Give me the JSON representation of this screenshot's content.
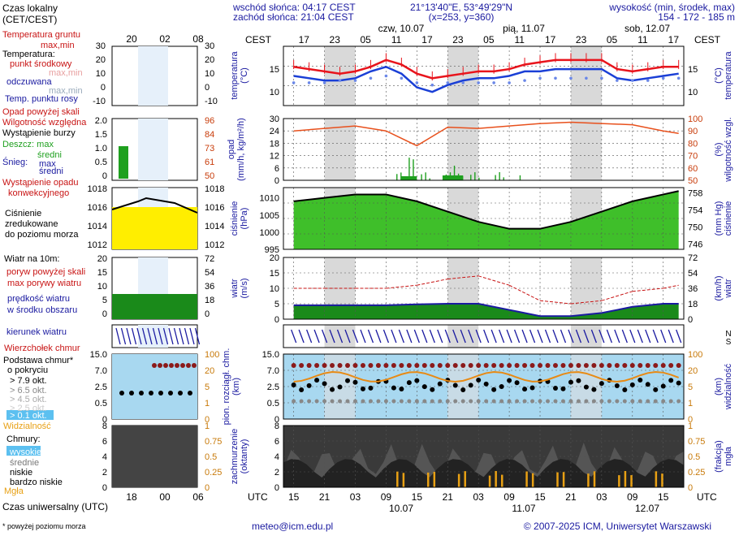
{
  "header": {
    "sunrise": "wschód słońca: 04:17 CEST",
    "sunset": "zachód słońca: 21:04 CEST",
    "coords": "21°13'40\"E, 53°49'29\"N",
    "grid": "(x=253, y=360)",
    "altitude_label": "wysokość (min, środek, max)",
    "altitude_values": "154 - 172 - 185 m",
    "day_labels": [
      "czw, 10.07",
      "pią, 11.07",
      "sob, 12.07"
    ],
    "tz_local": "CEST",
    "tz_utc": "UTC",
    "local_hours": [
      "17",
      "23",
      "05",
      "11",
      "17",
      "23",
      "05",
      "11",
      "17",
      "23",
      "05",
      "11",
      "17"
    ],
    "utc_hours": [
      "15",
      "21",
      "03",
      "09",
      "15",
      "21",
      "03",
      "09",
      "15",
      "21",
      "03",
      "09",
      "15"
    ],
    "utc_dates": [
      "10.07",
      "11.07",
      "12.07"
    ]
  },
  "legend": {
    "local_time": "Czas lokalny\n(CET/CEST)",
    "local_ticks": [
      "20",
      "02",
      "08"
    ],
    "utc_ticks": [
      "18",
      "00",
      "06"
    ],
    "utc_title": "Czas uniwersalny (UTC)",
    "footnote": "* powyżej poziomu morza",
    "temp": [
      "Temperatura gruntu",
      "max,min",
      "Temperatura:",
      "punkt środkowy",
      "max,min",
      "odczuwana",
      "max,min",
      "Temp. punktu rosy"
    ],
    "temp_ticks": [
      "30",
      "20",
      "10",
      "0",
      "-10"
    ],
    "precip": [
      "Opad powyżej skali",
      "Wilgotność względna",
      "Wystąpienie burzy",
      "Deszcz: max",
      "średni",
      "Śnieg:",
      "max",
      "średni",
      "Wystąpienie opadu",
      "konwekcyjnego"
    ],
    "precip_ticks_left": [
      "2.0",
      "1.5",
      "1.0",
      "0.5",
      "0"
    ],
    "precip_ticks_right": [
      "96",
      "84",
      "73",
      "61",
      "50"
    ],
    "pressure": [
      "Ciśnienie",
      "zredukowane",
      "do poziomu morza"
    ],
    "pressure_ticks": [
      "1018",
      "1016",
      "1014",
      "1012"
    ],
    "wind": [
      "Wiatr na 10m:",
      "poryw powyżej skali",
      "max porywy wiatru",
      "prędkość wiatru",
      "w środku obszaru"
    ],
    "wind_ticks_left": [
      "20",
      "15",
      "10",
      "5",
      "0"
    ],
    "wind_ticks_right": [
      "72",
      "54",
      "36",
      "18",
      "0"
    ],
    "wind_dir": "kierunek wiatru",
    "cloudbase": [
      "Wierzchołek chmur",
      "Podstawa chmur*",
      "o pokryciu",
      "> 7.9 okt.",
      "> 6.5 okt.",
      "> 4.5 okt.",
      "> 2.5 okt.",
      "> 0.1 okt.",
      "Widzialność"
    ],
    "cloudbase_ticks_left": [
      "15.0",
      "7.0",
      "2.5",
      "0.5",
      "0"
    ],
    "cloudbase_ticks_right": [
      "100",
      "20",
      "5",
      "1",
      "0"
    ],
    "clouds": [
      "Chmury:",
      "wysokie",
      "średnie",
      "niskie",
      "bardzo niskie",
      "Mgła"
    ],
    "clouds_ticks_left": [
      "8",
      "6",
      "4",
      "2",
      "0"
    ],
    "clouds_ticks_right": [
      "1",
      "0.75",
      "0.5",
      "0.25",
      "0"
    ]
  },
  "panels": {
    "temperature": {
      "ylabel": "temperatura\n(°C)",
      "ticks": [
        "15",
        "10"
      ],
      "ylim": [
        7,
        20
      ]
    },
    "precip": {
      "ylabel_left": "opad\n(mm/h, kg/m²/h)",
      "ylabel_right": "(%)\nwilgotność wzgl.",
      "ticks_left": [
        "30",
        "24",
        "18",
        "12",
        "6",
        "0"
      ],
      "ticks_right": [
        "100",
        "90",
        "80",
        "70",
        "60",
        "50"
      ]
    },
    "pressure": {
      "ylabel_left": "ciśnienie\n(hPa)",
      "ylabel_right": "(mm Hg)\nciśnienie",
      "ticks_left": [
        "1010",
        "1005",
        "1000",
        "995"
      ],
      "ticks_right": [
        "758",
        "754",
        "750",
        "746"
      ]
    },
    "wind": {
      "ylabel_left": "wiatr\n(m/s)",
      "ylabel_right": "(km/h)\nwiatr",
      "ticks_left": [
        "20",
        "15",
        "10",
        "5",
        "0"
      ],
      "ticks_right": [
        "72",
        "54",
        "36",
        "18",
        "0"
      ]
    },
    "cloudbase": {
      "ylabel_left": "pion. rozciągł. chm.\n(km)",
      "ylabel_right": "(km)\nwidzialność",
      "ticks_left": [
        "15.0",
        "7.0",
        "2.5",
        "0.5",
        "0"
      ],
      "ticks_right": [
        "100",
        "20",
        "5",
        "1",
        "0"
      ]
    },
    "clouds": {
      "ylabel_left": "zachmurzenie\n(oktanty)",
      "ylabel_right": "(frakcja)\nmgła",
      "ticks_left": [
        "8",
        "6",
        "4",
        "2",
        "0"
      ],
      "ticks_right": [
        "1",
        "0.75",
        "0.5",
        "0.25",
        "0"
      ]
    }
  },
  "footer": {
    "email": "meteo@icm.edu.pl",
    "copyright": "© 2007-2025 ICM, Uniwersytet Warszawski"
  },
  "colors": {
    "temp": "#e8141c",
    "perceived": "#1a3fd6",
    "dew": "#6a87e8",
    "humidity": "#e8501c",
    "rain": "#1fa01f",
    "pressure_fill": "#3fbf2a",
    "night": "#d9d9d9",
    "sky": "#a8d8f0"
  },
  "chart_data": [
    {
      "type": "line",
      "title": "temperatura",
      "xlabel": "UTC",
      "ylabel": "(°C)",
      "x": [
        0,
        3,
        6,
        9,
        12,
        15,
        18,
        21,
        24,
        27,
        30,
        33,
        36,
        39,
        42,
        45,
        48,
        51,
        54,
        57,
        60,
        63,
        66,
        69,
        72,
        75
      ],
      "series": [
        {
          "name": "punkt środkowy",
          "values": [
            15.5,
            15,
            14.5,
            14,
            14.5,
            15.5,
            17,
            16,
            14,
            13,
            13.5,
            14,
            14.5,
            14.5,
            15,
            16,
            16.5,
            17,
            17,
            17,
            17,
            15,
            14.5,
            15,
            15.5,
            15.5
          ]
        },
        {
          "name": "odczuwana",
          "values": [
            13.5,
            13,
            12.5,
            12.5,
            13,
            14.5,
            15.5,
            14,
            11,
            10,
            11.5,
            12.5,
            13,
            13,
            13.5,
            14.5,
            14.5,
            15,
            15,
            15,
            15,
            13,
            12.5,
            13,
            13.5,
            14
          ]
        },
        {
          "name": "Temp. punktu rosy",
          "values": [
            12,
            12,
            12,
            12.5,
            12.5,
            13,
            13.5,
            13,
            12,
            11.5,
            12,
            12,
            12,
            12,
            12,
            12.5,
            13,
            13,
            13,
            13,
            13,
            12.5,
            12.5,
            12.5,
            13,
            13
          ]
        }
      ],
      "ylim": [
        7,
        20
      ]
    },
    {
      "type": "line",
      "title": "opad / wilgotność",
      "xlabel": "UTC",
      "ylabel": "(mm/h)",
      "x": [
        0,
        6,
        12,
        18,
        24,
        30,
        36,
        42,
        48,
        54,
        60,
        66,
        72,
        75
      ],
      "series": [
        {
          "name": "Wilgotność względna",
          "values": [
            90,
            92,
            94,
            90,
            78,
            93,
            92,
            94,
            96,
            97,
            96,
            95,
            90,
            88
          ]
        }
      ],
      "ylim": [
        0,
        30
      ]
    },
    {
      "type": "area",
      "title": "ciśnienie",
      "xlabel": "UTC",
      "ylabel": "(hPa)",
      "x": [
        0,
        6,
        12,
        18,
        24,
        30,
        36,
        42,
        48,
        54,
        60,
        66,
        72,
        75
      ],
      "values": [
        1009,
        1010,
        1011,
        1011,
        1009,
        1006,
        1003,
        1001,
        1001,
        1003,
        1006,
        1009,
        1011,
        1012
      ],
      "ylim": [
        995,
        1013
      ]
    },
    {
      "type": "line",
      "title": "wiatr",
      "xlabel": "UTC",
      "ylabel": "(m/s)",
      "x": [
        0,
        6,
        12,
        18,
        24,
        30,
        36,
        42,
        48,
        54,
        60,
        66,
        72,
        75
      ],
      "series": [
        {
          "name": "max porywy wiatru",
          "values": [
            10,
            10,
            10,
            10,
            11,
            13,
            14,
            11,
            6,
            5,
            6,
            9,
            10,
            11
          ]
        },
        {
          "name": "prędkość wiatru",
          "values": [
            4.5,
            4.5,
            4.5,
            4.5,
            4.8,
            5,
            5,
            3,
            1,
            1,
            2,
            4,
            5,
            5
          ]
        }
      ],
      "ylim": [
        0,
        20
      ]
    }
  ]
}
